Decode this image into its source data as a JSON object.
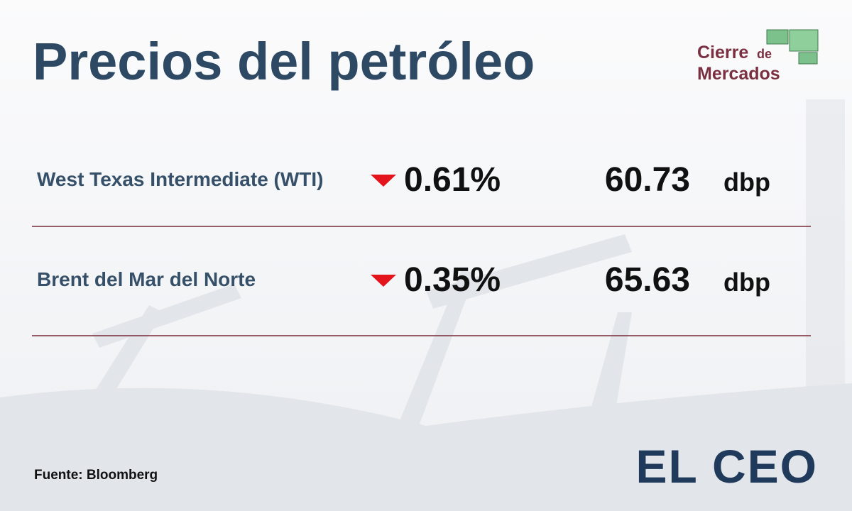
{
  "header": {
    "title": "Precios del petróleo",
    "brand": {
      "line1": "Cierre",
      "line1_small": "de",
      "line2": "Mercados"
    }
  },
  "table": {
    "rows": [
      {
        "name": "West Texas Intermediate (WTI)",
        "change": "0.61%",
        "price": "60.73",
        "unit": "dbp"
      },
      {
        "name": "Brent del Mar del Norte",
        "change": "0.35%",
        "price": "65.63",
        "unit": "dbp"
      }
    ]
  },
  "footer": {
    "source": "Fuente: Bloomberg",
    "logo": "EL CEO"
  }
}
